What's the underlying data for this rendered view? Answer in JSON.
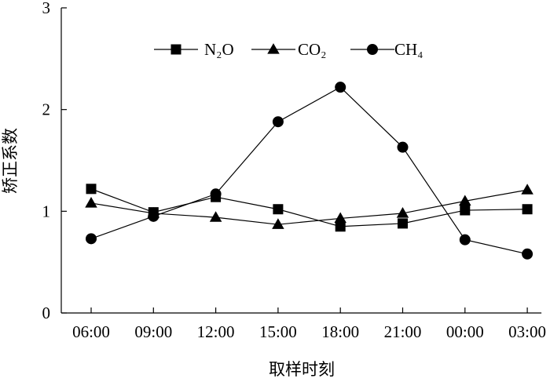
{
  "chart_data": {
    "type": "line",
    "xlabel": "取样时刻",
    "ylabel": "矫正系数",
    "ylim": [
      0,
      3
    ],
    "yticks": [
      "0",
      "1",
      "2",
      "3"
    ],
    "categories": [
      "06:00",
      "09:00",
      "12:00",
      "15:00",
      "18:00",
      "21:00",
      "00:00",
      "03:00"
    ],
    "legend_position": "top-center",
    "grid": false,
    "series": [
      {
        "name": "N₂O",
        "marker": "square",
        "values": [
          1.22,
          0.99,
          1.14,
          1.02,
          0.85,
          0.88,
          1.01,
          1.02
        ]
      },
      {
        "name": "CO₂",
        "marker": "triangle",
        "values": [
          1.08,
          0.98,
          0.94,
          0.87,
          0.93,
          0.98,
          1.1,
          1.21
        ]
      },
      {
        "name": "CH₄",
        "marker": "circle",
        "values": [
          0.73,
          0.95,
          1.17,
          1.88,
          2.22,
          1.63,
          0.72,
          0.58
        ]
      }
    ]
  }
}
